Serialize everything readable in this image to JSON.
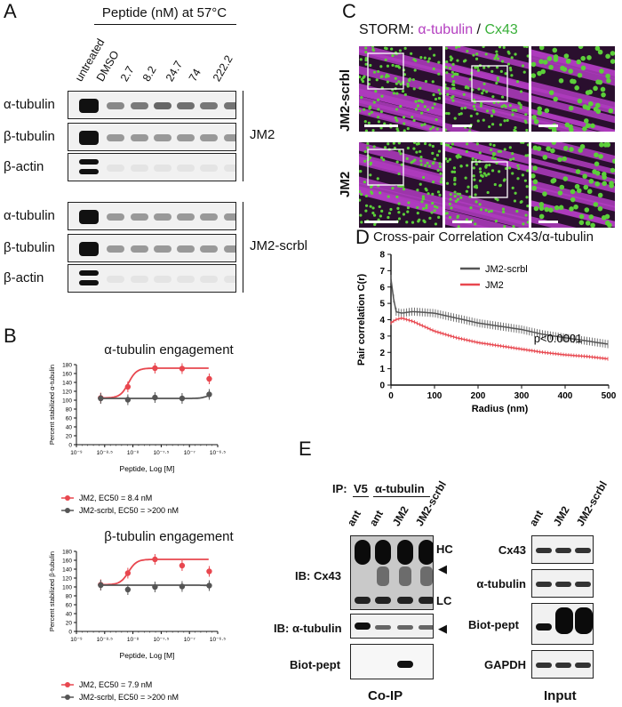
{
  "panelA": {
    "letter": "A",
    "header": "Peptide (nM) at 57°C",
    "lanes": [
      "untreated",
      "DMSO",
      "2.7",
      "8.2",
      "24.7",
      "74",
      "222.2"
    ],
    "rows": [
      "α-tubulin",
      "β-tubulin",
      "β-actin"
    ],
    "groups": [
      "JM2",
      "JM2-scrbl"
    ]
  },
  "panelB": {
    "letter": "B",
    "top": {
      "title": "α-tubulin engagement",
      "ylabel": "Percent stabilized α-tubulin",
      "legend": [
        "JM2, EC50 = 8.4 nM",
        "JM2-scrbl, EC50 = >200 nM"
      ]
    },
    "bottom": {
      "title": "β-tubulin engagement",
      "ylabel": "Percent stabilized β-tubulin",
      "legend": [
        "JM2, EC50 = 7.9 nM",
        "JM2-scrbl, EC50 = >200 nM"
      ]
    },
    "xlabel": "Peptide, Log [M]",
    "yticks": [
      "0",
      "20",
      "40",
      "60",
      "80",
      "100",
      "120",
      "140",
      "160",
      "180"
    ],
    "xticks": [
      "10⁻⁹",
      "10⁻⁸·⁵",
      "10⁻⁸",
      "10⁻⁷·⁵",
      "10⁻⁷",
      "10⁻⁶·⁵"
    ]
  },
  "panelC": {
    "letter": "C",
    "title_prefix": "STORM: ",
    "title_a": "α-tubulin",
    "title_sep": " / ",
    "title_b": "Cx43",
    "rows": [
      "JM2-scrbl",
      "JM2"
    ]
  },
  "panelD": {
    "letter": "D",
    "title": "Cross-pair Correlation Cx43/α-tubulin",
    "ylabel": "Pair correlation C(r)",
    "xlabel": "Radius (nm)",
    "legend": [
      "JM2-scrbl",
      "JM2"
    ],
    "pvalue": "p<0.0001",
    "xticks": [
      "0",
      "100",
      "200",
      "300",
      "400",
      "500"
    ],
    "yticks": [
      "0",
      "1",
      "2",
      "3",
      "4",
      "5",
      "6",
      "7",
      "8"
    ]
  },
  "panelE": {
    "letter": "E",
    "ip": "IP:",
    "ip_v5": "V5",
    "ip_tub": "α-tubulin",
    "lanes_coip": [
      "ant",
      "ant",
      "JM2",
      "JM2-scrbl"
    ],
    "lanes_input": [
      "ant",
      "JM2",
      "JM2-scrbl"
    ],
    "ib_cx43": "IB: Cx43",
    "ib_tub": "IB: α-tubulin",
    "biot": "Biot-pept",
    "hc": "HC",
    "lc": "LC",
    "coip": "Co-IP",
    "input": "Input",
    "input_rows": [
      "Cx43",
      "α-tubulin",
      "Biot-pept",
      "GAPDH"
    ]
  },
  "chart_data": [
    {
      "type": "scatter",
      "title": "α-tubulin engagement",
      "xlabel": "Peptide, Log [M]",
      "ylabel": "Percent stabilized α-tubulin",
      "ylim": [
        0,
        180
      ],
      "xlim": [
        -9,
        -6.5
      ],
      "series": [
        {
          "name": "JM2, EC50 = 8.4 nM",
          "color": "#e8474f",
          "x": [
            -8.57,
            -8.09,
            -7.61,
            -7.13,
            -6.65
          ],
          "y": [
            105,
            130,
            172,
            171,
            148
          ]
        },
        {
          "name": "JM2-scrbl, EC50 = >200 nM",
          "color": "#555555",
          "x": [
            -8.57,
            -8.09,
            -7.61,
            -7.13,
            -6.65
          ],
          "y": [
            104,
            101,
            106,
            104,
            113
          ]
        }
      ]
    },
    {
      "type": "scatter",
      "title": "β-tubulin engagement",
      "xlabel": "Peptide, Log [M]",
      "ylabel": "Percent stabilized β-tubulin",
      "ylim": [
        0,
        180
      ],
      "xlim": [
        -9,
        -6.5
      ],
      "series": [
        {
          "name": "JM2, EC50 = 7.9 nM",
          "color": "#e8474f",
          "x": [
            -8.57,
            -8.09,
            -7.61,
            -7.13,
            -6.65
          ],
          "y": [
            105,
            131,
            162,
            148,
            135
          ]
        },
        {
          "name": "JM2-scrbl, EC50 = >200 nM",
          "color": "#555555",
          "x": [
            -8.57,
            -8.09,
            -7.61,
            -7.13,
            -6.65
          ],
          "y": [
            104,
            94,
            100,
            101,
            103
          ]
        }
      ]
    },
    {
      "type": "line",
      "title": "Cross-pair Correlation Cx43/α-tubulin",
      "xlabel": "Radius (nm)",
      "ylabel": "Pair correlation C(r)",
      "xlim": [
        0,
        500
      ],
      "ylim": [
        0,
        8
      ],
      "series": [
        {
          "name": "JM2-scrbl",
          "color": "#555555",
          "x": [
            0,
            10,
            25,
            50,
            100,
            150,
            200,
            250,
            300,
            350,
            400,
            450,
            500
          ],
          "y": [
            6.5,
            4.5,
            4.4,
            4.5,
            4.4,
            4.1,
            3.8,
            3.6,
            3.4,
            3.1,
            2.9,
            2.7,
            2.5
          ]
        },
        {
          "name": "JM2",
          "color": "#e8474f",
          "x": [
            0,
            10,
            25,
            50,
            100,
            150,
            200,
            250,
            300,
            350,
            400,
            450,
            500
          ],
          "y": [
            3.8,
            4.0,
            4.1,
            3.9,
            3.3,
            2.9,
            2.6,
            2.4,
            2.2,
            2.0,
            1.85,
            1.75,
            1.6
          ]
        }
      ]
    }
  ]
}
